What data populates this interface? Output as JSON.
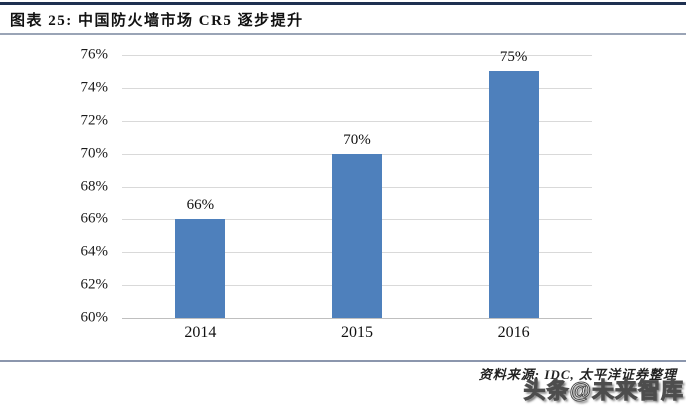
{
  "header": {
    "title": "图表 25: 中国防火墙市场 CR5 逐步提升"
  },
  "chart_data": {
    "type": "bar",
    "title": "图表 25: 中国防火墙市场 CR5 逐步提升",
    "categories": [
      "2014",
      "2015",
      "2016"
    ],
    "values": [
      66,
      70,
      75
    ],
    "value_labels": [
      "66%",
      "70%",
      "75%"
    ],
    "xlabel": "",
    "ylabel": "",
    "ylim": [
      60,
      76
    ],
    "ytick_step": 2,
    "ytick_format": "{v}%",
    "grid": true,
    "legend_position": "none",
    "bar_color": "#4e80bc",
    "gridline_color": "#d9d9d9",
    "baseline_color": "#bfbfbf"
  },
  "footer": {
    "source": "资料来源: IDC, 太平洋证券整理",
    "watermark": "头条@未来智库"
  },
  "colors": {
    "top_rule": "#1e3050",
    "header_rule": "#9aa4b6",
    "footer_rule": "#8b96ad"
  }
}
